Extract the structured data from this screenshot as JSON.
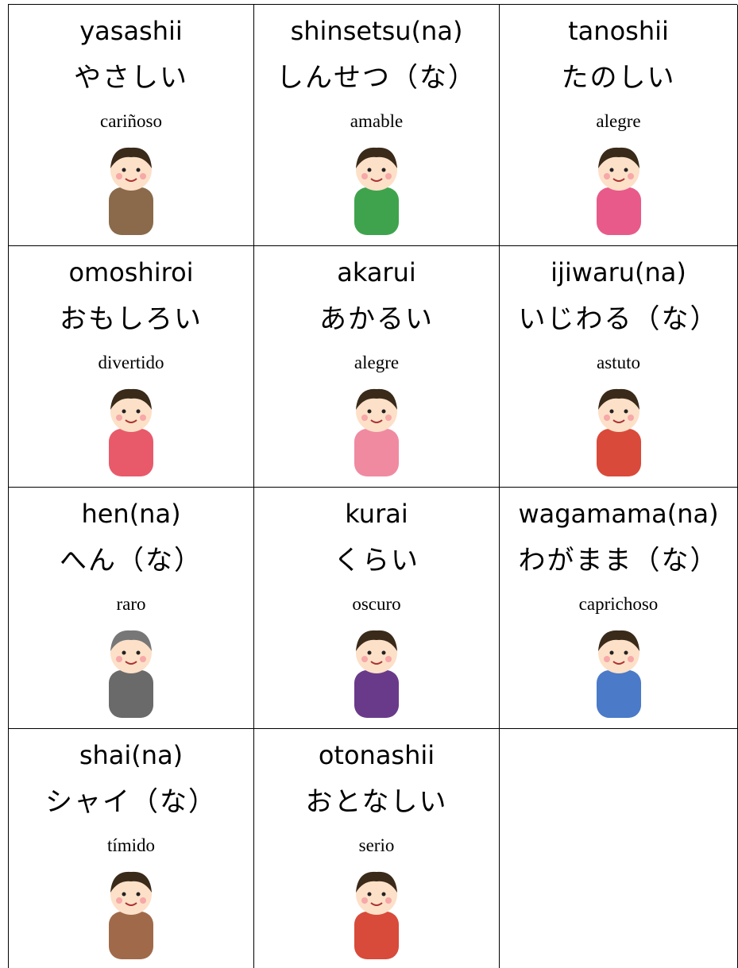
{
  "cards": [
    {
      "romaji": "yasashii",
      "kana": "やさしい",
      "spanish": "cariñoso"
    },
    {
      "romaji": "shinsetsu(na)",
      "kana": "しんせつ（な）",
      "spanish": "amable"
    },
    {
      "romaji": "tanoshii",
      "kana": "たのしい",
      "spanish": "alegre"
    },
    {
      "romaji": "omoshiroi",
      "kana": "おもしろい",
      "spanish": "divertido"
    },
    {
      "romaji": "akarui",
      "kana": "あかるい",
      "spanish": "alegre"
    },
    {
      "romaji": "ijiwaru(na)",
      "kana": "いじわる（な）",
      "spanish": "astuto"
    },
    {
      "romaji": "hen(na)",
      "kana": "へん（な）",
      "spanish": "raro"
    },
    {
      "romaji": "kurai",
      "kana": "くらい",
      "spanish": "oscuro"
    },
    {
      "romaji": "wagamama(na)",
      "kana": "わがまま（な）",
      "spanish": "caprichoso"
    },
    {
      "romaji": "shai(na)",
      "kana": "シャイ（な）",
      "spanish": "tímido"
    },
    {
      "romaji": "otonashii",
      "kana": "おとなしい",
      "spanish": "serio"
    }
  ]
}
